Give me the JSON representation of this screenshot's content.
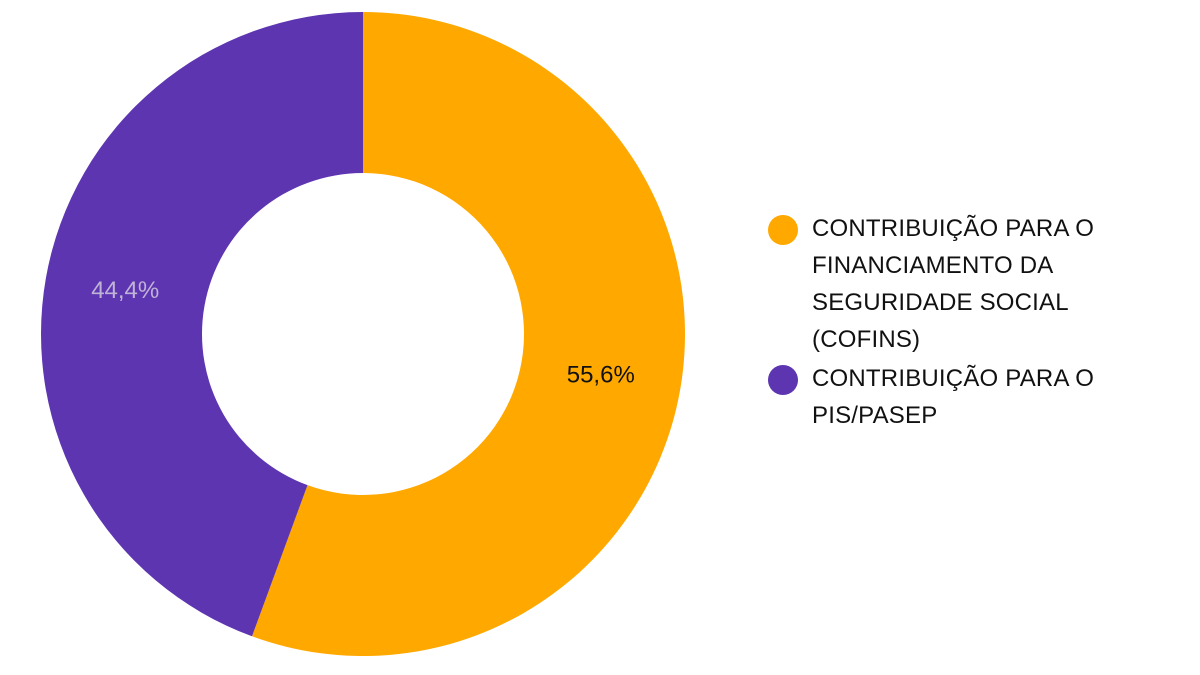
{
  "chart_data": {
    "type": "pie",
    "variant": "donut",
    "legend_position": "right",
    "slices": [
      {
        "name": "CONTRIBUIÇÃO PARA O FINANCIAMENTO DA SEGURIDADE SOCIAL (COFINS)",
        "value": 55.6,
        "label": "55,6%",
        "color": "#FFA800",
        "label_color": "#111111"
      },
      {
        "name": "CONTRIBUIÇÃO PARA O PIS/PASEP",
        "value": 44.4,
        "label": "44,4%",
        "color": "#5E35B1",
        "label_color": "#BFB3D6"
      }
    ]
  }
}
